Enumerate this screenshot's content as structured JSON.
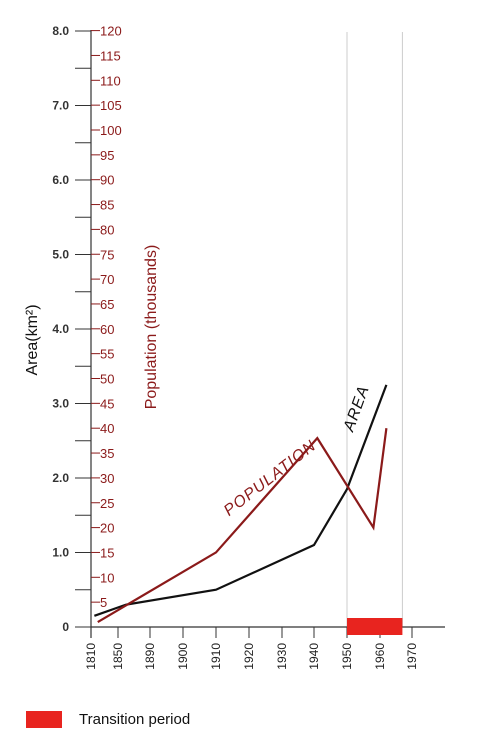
{
  "chart_data": {
    "type": "line",
    "x": [
      "1810",
      "1850",
      "1890",
      "1900",
      "1910",
      "1920",
      "1930",
      "1940",
      "1950",
      "1960",
      "1970"
    ],
    "left_axis": {
      "label": "Area(km²)",
      "ticks": [
        "0",
        "1.0",
        "2.0",
        "3.0",
        "4.0",
        "5.0",
        "6.0",
        "7.0",
        "8.0"
      ],
      "ylim": [
        0,
        8
      ]
    },
    "right_axis": {
      "label": "Population (thousands)",
      "ticks": [
        "5",
        "10",
        "15",
        "20",
        "25",
        "30",
        "35",
        "40",
        "45",
        "50",
        "55",
        "60",
        "65",
        "70",
        "75",
        "80",
        "85",
        "90",
        "95",
        "100",
        "105",
        "110",
        "115",
        "120"
      ],
      "ylim": [
        0,
        120
      ]
    },
    "series": [
      {
        "name": "AREA",
        "axis": "left",
        "color": "#111111",
        "points": [
          [
            "1815",
            0.15
          ],
          [
            "1860",
            0.3
          ],
          [
            "1910",
            0.5
          ],
          [
            "1940",
            1.1
          ],
          [
            "1950",
            1.85
          ],
          [
            "1962",
            3.25
          ]
        ]
      },
      {
        "name": "POPULATION",
        "axis": "right",
        "color": "#8b1a1a",
        "points": [
          [
            "1820",
            1
          ],
          [
            "1910",
            15
          ],
          [
            "1941",
            38
          ],
          [
            "1958",
            20
          ],
          [
            "1962",
            40
          ]
        ]
      }
    ],
    "transition_period": [
      "1950",
      "1967"
    ],
    "gridlines_vertical": [
      "1950",
      "1967"
    ],
    "legend": {
      "label": "Transition period",
      "color": "#e8241f",
      "placement": "bottom-left"
    }
  }
}
